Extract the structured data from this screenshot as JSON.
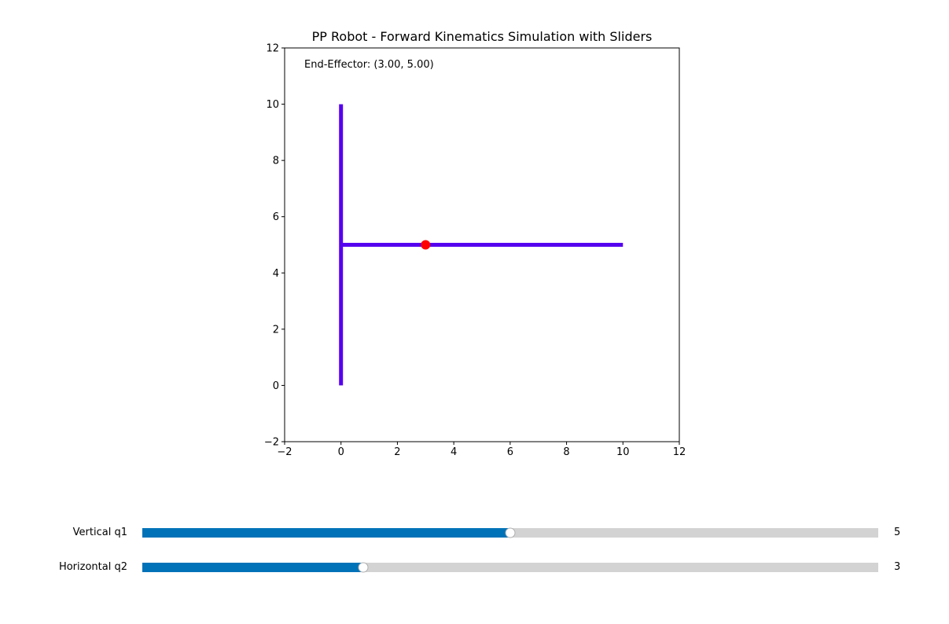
{
  "chart_data": {
    "type": "line",
    "title": "PP Robot - Forward Kinematics Simulation with Sliders",
    "xlim": [
      -2,
      12
    ],
    "ylim": [
      -2,
      12
    ],
    "xticks": [
      -2,
      0,
      2,
      4,
      6,
      8,
      10,
      12
    ],
    "yticks": [
      -2,
      0,
      2,
      4,
      6,
      8,
      10,
      12
    ],
    "grid": false,
    "series": [
      {
        "x": [
          0,
          0
        ],
        "y": [
          0,
          10
        ],
        "color": "#5500ee"
      },
      {
        "x": [
          0,
          10
        ],
        "y": [
          5,
          5
        ],
        "color": "#5500ee"
      }
    ],
    "points": [
      {
        "x": 3,
        "y": 5,
        "color": "#ff0000"
      }
    ],
    "annotation": "End-Effector: (3.00, 5.00)"
  },
  "sliders": [
    {
      "label": "Vertical q1",
      "value": "5",
      "fraction": 0.5,
      "fill_color": "#0072b8"
    },
    {
      "label": "Horizontal q2",
      "value": "3",
      "fraction": 0.3,
      "fill_color": "#0072b8"
    }
  ]
}
